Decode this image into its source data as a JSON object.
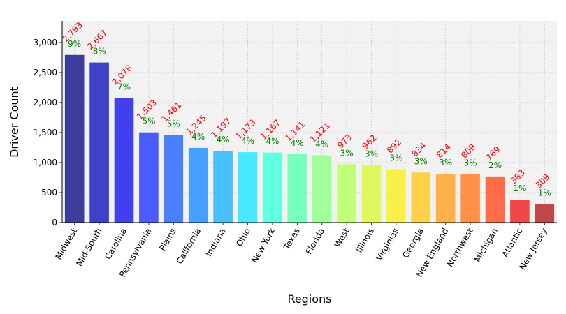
{
  "chart_data": {
    "type": "bar",
    "xlabel": "Regions",
    "ylabel": "Driver Count",
    "ylim": [
      0,
      3360
    ],
    "yticks": [
      0,
      500,
      1000,
      1500,
      2000,
      2500,
      3000
    ],
    "ytick_labels": [
      "0",
      "500",
      "1,000",
      "1,500",
      "2,000",
      "2,500",
      "3,000"
    ],
    "grid": true,
    "categories": [
      "Midwest",
      "Mid-South",
      "Carolina",
      "Pennsylvania",
      "Plains",
      "California",
      "Indiana",
      "Ohio",
      "New York",
      "Texas",
      "Florida",
      "West",
      "Illinois",
      "Virginias",
      "Georgia",
      "New England",
      "Northwest",
      "Michigan",
      "Atlantic",
      "New Jersey"
    ],
    "values": [
      2793,
      2667,
      2078,
      1503,
      1461,
      1245,
      1197,
      1173,
      1167,
      1141,
      1121,
      973,
      962,
      892,
      834,
      814,
      809,
      769,
      383,
      309
    ],
    "value_labels": [
      "2,793",
      "2,667",
      "2,078",
      "1,503",
      "1,461",
      "1,245",
      "1,197",
      "1,173",
      "1,167",
      "1,141",
      "1,121",
      "973",
      "962",
      "892",
      "834",
      "814",
      "809",
      "769",
      "383",
      "309"
    ],
    "percent_labels": [
      "9%",
      "8%",
      "7%",
      "5%",
      "5%",
      "4%",
      "4%",
      "4%",
      "4%",
      "4%",
      "4%",
      "3%",
      "3%",
      "3%",
      "3%",
      "3%",
      "3%",
      "2%",
      "1%",
      "1%"
    ],
    "colors": [
      "#3c3c9c",
      "#4040c8",
      "#4040ee",
      "#4a5cff",
      "#4a80ff",
      "#46a0ff",
      "#48c0ff",
      "#48e8ff",
      "#60ffe0",
      "#78ffc0",
      "#a0ff98",
      "#c0ff78",
      "#e0f860",
      "#f8f048",
      "#ffd048",
      "#ffb048",
      "#ff9048",
      "#ff6c48",
      "#f04848",
      "#c04848"
    ],
    "value_label_color": "#ff0000",
    "percent_label_color": "#008000",
    "plot_background": "#f2f2f2"
  }
}
